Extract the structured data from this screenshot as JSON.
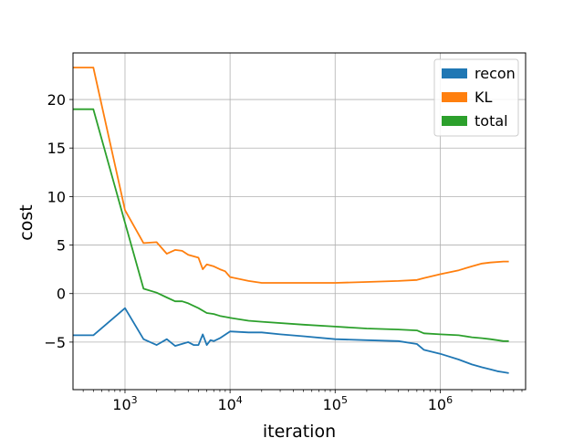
{
  "chart_data": {
    "type": "line",
    "title": "",
    "xlabel": "iteration",
    "ylabel": "cost",
    "xscale": "log",
    "xlim": [
      320,
      6500000
    ],
    "ylim": [
      -9.9,
      24.8
    ],
    "grid": true,
    "legend_position": "top-right",
    "x_ticks": [
      {
        "value": 1000,
        "label": "10^3"
      },
      {
        "value": 10000,
        "label": "10^4"
      },
      {
        "value": 100000,
        "label": "10^5"
      },
      {
        "value": 1000000,
        "label": "10^6"
      }
    ],
    "y_ticks": [
      -5,
      0,
      5,
      10,
      15,
      20
    ],
    "series": [
      {
        "name": "recon",
        "color": "#1f77b4",
        "x": [
          320,
          500,
          1000,
          1500,
          2000,
          2500,
          3000,
          4000,
          4500,
          5000,
          5500,
          6000,
          6500,
          7000,
          8000,
          10000,
          15000,
          20000,
          30000,
          50000,
          100000,
          200000,
          400000,
          600000,
          700000,
          1000000,
          1500000,
          2000000,
          2500000,
          3000000,
          3500000,
          4000000,
          4500000
        ],
        "y": [
          -4.3,
          -4.3,
          -1.5,
          -4.7,
          -5.3,
          -4.7,
          -5.4,
          -5.0,
          -5.3,
          -5.3,
          -4.2,
          -5.3,
          -4.8,
          -4.9,
          -4.6,
          -3.9,
          -4.0,
          -4.0,
          -4.2,
          -4.4,
          -4.7,
          -4.8,
          -4.9,
          -5.2,
          -5.8,
          -6.2,
          -6.8,
          -7.3,
          -7.6,
          -7.8,
          -8.0,
          -8.1,
          -8.2
        ]
      },
      {
        "name": "KL",
        "color": "#ff7f0e",
        "x": [
          320,
          500,
          1000,
          1500,
          2000,
          2500,
          3000,
          3500,
          4000,
          5000,
          5500,
          6000,
          7000,
          8000,
          9000,
          10000,
          15000,
          20000,
          50000,
          100000,
          200000,
          400000,
          600000,
          700000,
          1000000,
          1500000,
          2000000,
          2500000,
          3000000,
          4000000,
          4500000
        ],
        "y": [
          23.3,
          23.3,
          8.6,
          5.2,
          5.3,
          4.1,
          4.5,
          4.4,
          4.0,
          3.7,
          2.5,
          3.0,
          2.8,
          2.5,
          2.3,
          1.7,
          1.3,
          1.1,
          1.1,
          1.1,
          1.2,
          1.3,
          1.4,
          1.6,
          2.0,
          2.4,
          2.8,
          3.1,
          3.2,
          3.3,
          3.3
        ]
      },
      {
        "name": "total",
        "color": "#2ca02c",
        "x": [
          320,
          500,
          1000,
          1500,
          2000,
          2500,
          3000,
          3500,
          4000,
          5000,
          6000,
          7000,
          8000,
          10000,
          15000,
          20000,
          50000,
          100000,
          200000,
          400000,
          600000,
          700000,
          1000000,
          1500000,
          2000000,
          2500000,
          3000000,
          3500000,
          4000000,
          4500000
        ],
        "y": [
          19.0,
          19.0,
          7.3,
          0.5,
          0.1,
          -0.4,
          -0.8,
          -0.8,
          -1.0,
          -1.5,
          -2.0,
          -2.1,
          -2.3,
          -2.5,
          -2.8,
          -2.9,
          -3.2,
          -3.4,
          -3.6,
          -3.7,
          -3.8,
          -4.1,
          -4.2,
          -4.3,
          -4.5,
          -4.6,
          -4.7,
          -4.8,
          -4.9,
          -4.9
        ]
      }
    ]
  }
}
